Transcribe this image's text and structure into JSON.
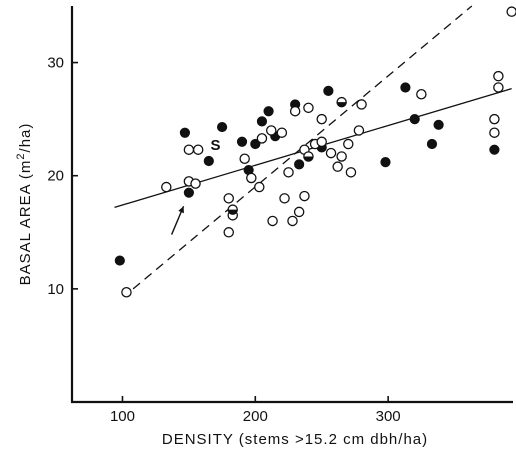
{
  "chart_data": {
    "type": "scatter",
    "title": "",
    "xlabel_main": "DENSITY",
    "xlabel_rest": " (stems >15.2 cm dbh/ha)",
    "ylabel_main": "BASAL AREA (m",
    "ylabel_sup": "2",
    "ylabel_rest": "/ha)",
    "xlim": [
      62,
      394
    ],
    "ylim": [
      0,
      35
    ],
    "x_ticks": [
      {
        "value": 100,
        "label": "100"
      },
      {
        "value": 200,
        "label": "200"
      },
      {
        "value": 300,
        "label": "300"
      }
    ],
    "y_ticks": [
      {
        "value": 10,
        "label": "10"
      },
      {
        "value": 20,
        "label": "20"
      },
      {
        "value": 30,
        "label": "30"
      }
    ],
    "grid": false,
    "series": [
      {
        "marker": "filled-circle",
        "points": [
          [
            98,
            12.5
          ],
          [
            147,
            23.8
          ],
          [
            150,
            18.5
          ],
          [
            165,
            21.3
          ],
          [
            175,
            24.3
          ],
          [
            190,
            23.0
          ],
          [
            195,
            20.5
          ],
          [
            200,
            22.8
          ],
          [
            205,
            24.8
          ],
          [
            210,
            25.7
          ],
          [
            215,
            23.5
          ],
          [
            230,
            26.3
          ],
          [
            233,
            21.0
          ],
          [
            250,
            22.5
          ],
          [
            255,
            27.5
          ],
          [
            298,
            21.2
          ],
          [
            313,
            27.8
          ],
          [
            320,
            25.0
          ],
          [
            333,
            22.8
          ],
          [
            338,
            24.5
          ],
          [
            380,
            22.3
          ]
        ]
      },
      {
        "marker": "open-circle",
        "points": [
          [
            103,
            9.7
          ],
          [
            133,
            19.0
          ],
          [
            150,
            19.5
          ],
          [
            150,
            22.3
          ],
          [
            155,
            19.3
          ],
          [
            157,
            22.3
          ],
          [
            180,
            18.0
          ],
          [
            180,
            15.0
          ],
          [
            183,
            16.5
          ],
          [
            192,
            21.5
          ],
          [
            197,
            19.8
          ],
          [
            203,
            19.0
          ],
          [
            205,
            23.3
          ],
          [
            212,
            24.0
          ],
          [
            213,
            16.0
          ],
          [
            220,
            23.8
          ],
          [
            222,
            18.0
          ],
          [
            225,
            20.3
          ],
          [
            228,
            16.0
          ],
          [
            230,
            25.7
          ],
          [
            233,
            16.8
          ],
          [
            237,
            18.2
          ],
          [
            237,
            22.3
          ],
          [
            240,
            26.0
          ],
          [
            245,
            22.8
          ],
          [
            250,
            25.0
          ],
          [
            250,
            23.0
          ],
          [
            257,
            22.0
          ],
          [
            262,
            20.8
          ],
          [
            265,
            21.7
          ],
          [
            270,
            22.8
          ],
          [
            272,
            20.3
          ],
          [
            278,
            24.0
          ],
          [
            280,
            26.3
          ],
          [
            325,
            27.2
          ],
          [
            380,
            23.8
          ],
          [
            380,
            25.0
          ],
          [
            383,
            28.8
          ],
          [
            383,
            27.8
          ],
          [
            393,
            34.5
          ]
        ]
      },
      {
        "marker": "half-filled-circle",
        "points": [
          [
            183,
            17.0
          ],
          [
            240,
            21.7
          ],
          [
            265,
            26.5
          ]
        ]
      }
    ],
    "fits": [
      {
        "style": "solid",
        "x": [
          94,
          393
        ],
        "y": [
          17.2,
          27.7
        ]
      },
      {
        "style": "dashed",
        "x": [
          108,
          363
        ],
        "y": [
          10.0,
          35.0
        ]
      }
    ],
    "annotations": [
      {
        "text": "S",
        "x": 170,
        "y": 22.7
      }
    ],
    "arrow": {
      "x_from": 137,
      "y_from": 14.8,
      "x_to": 146,
      "y_to": 17.3
    }
  }
}
